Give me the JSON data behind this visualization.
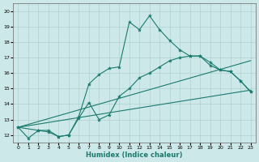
{
  "title": "",
  "xlabel": "Humidex (Indice chaleur)",
  "xlim": [
    -0.5,
    23.5
  ],
  "ylim": [
    11.5,
    20.5
  ],
  "xticks": [
    0,
    1,
    2,
    3,
    4,
    5,
    6,
    7,
    8,
    9,
    10,
    11,
    12,
    13,
    14,
    15,
    16,
    17,
    18,
    19,
    20,
    21,
    22,
    23
  ],
  "yticks": [
    12,
    13,
    14,
    15,
    16,
    17,
    18,
    19,
    20
  ],
  "line_color": "#1a7a6e",
  "bg_color": "#cde8e8",
  "grid_color": "#b0d0d0",
  "lines": [
    {
      "x": [
        0,
        1,
        2,
        3,
        4,
        5,
        6,
        7,
        8,
        9,
        10,
        11,
        12,
        13,
        14,
        15,
        16,
        17,
        18,
        19,
        20,
        21,
        22,
        23
      ],
      "y": [
        12.5,
        11.8,
        12.3,
        12.3,
        11.9,
        12.0,
        13.2,
        15.3,
        15.9,
        16.3,
        16.4,
        19.3,
        18.8,
        19.7,
        18.8,
        18.1,
        17.5,
        17.1,
        17.1,
        16.7,
        16.2,
        16.1,
        15.5,
        14.8
      ],
      "marker": true
    },
    {
      "x": [
        0,
        2,
        3,
        4,
        5,
        6,
        7,
        8,
        9,
        10,
        11,
        12,
        13,
        14,
        15,
        16,
        17,
        18,
        19,
        20,
        21,
        22,
        23
      ],
      "y": [
        12.5,
        12.3,
        12.2,
        11.9,
        12.0,
        13.1,
        14.1,
        13.0,
        13.3,
        14.5,
        15.0,
        15.7,
        16.0,
        16.4,
        16.8,
        17.0,
        17.1,
        17.1,
        16.5,
        16.2,
        16.1,
        15.5,
        14.8
      ],
      "marker": true
    },
    {
      "x": [
        0,
        23
      ],
      "y": [
        12.5,
        16.8
      ],
      "marker": false
    },
    {
      "x": [
        0,
        23
      ],
      "y": [
        12.5,
        14.9
      ],
      "marker": false
    }
  ]
}
